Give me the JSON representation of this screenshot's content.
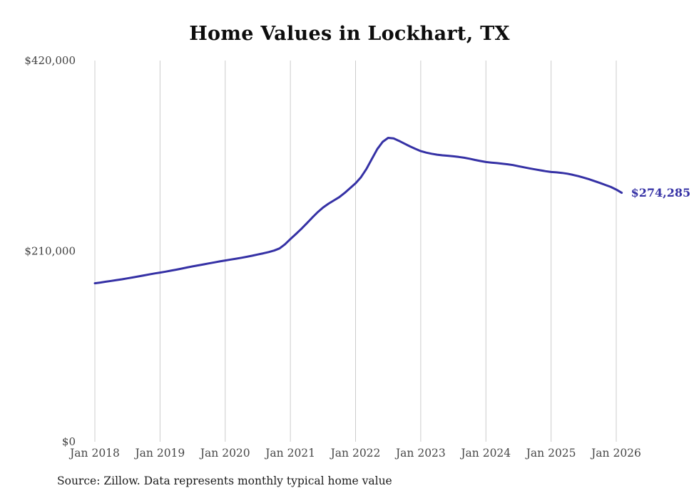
{
  "title": "Home Values in Lockhart, TX",
  "source": "Source: Zillow. Data represents monthly typical home value",
  "colors": {
    "line": "#3531a5",
    "grid": "#cccccc",
    "title_text": "#0d0d0d",
    "tick_text": "#474747",
    "source_text": "#1b1b1b",
    "end_label": "#3531a5",
    "background": "#ffffff"
  },
  "chart_data": {
    "type": "line",
    "title": "Home Values in Lockhart, TX",
    "series_name": "Typical home value (USD)",
    "x_start": "2018-01",
    "x_interval": "monthly",
    "x_tick_labels": [
      "Jan 2018",
      "Jan 2019",
      "Jan 2020",
      "Jan 2021",
      "Jan 2022",
      "Jan 2023",
      "Jan 2024",
      "Jan 2025",
      "Jan 2026"
    ],
    "y_tick_labels": [
      "$0",
      "$210,000",
      "$420,000"
    ],
    "y_tick_values": [
      0,
      210000,
      420000
    ],
    "ylim": [
      0,
      420000
    ],
    "grid": "vertical-only",
    "legend": "none",
    "end_label": "$274,285",
    "final_value": 274285,
    "peak_value": 334800,
    "values": [
      174600,
      175400,
      176300,
      177200,
      178100,
      179000,
      180000,
      181000,
      182100,
      183200,
      184300,
      185400,
      186400,
      187400,
      188500,
      189600,
      190800,
      192000,
      193200,
      194300,
      195400,
      196500,
      197600,
      198700,
      199700,
      200700,
      201700,
      202700,
      203800,
      205000,
      206300,
      207600,
      209000,
      210600,
      213000,
      217500,
      223300,
      228800,
      234500,
      240500,
      246800,
      252800,
      258000,
      262200,
      265800,
      269500,
      274200,
      279500,
      284700,
      291500,
      300500,
      311500,
      322500,
      330500,
      334800,
      334200,
      331500,
      328500,
      325500,
      322700,
      320200,
      318600,
      317300,
      316300,
      315600,
      315100,
      314500,
      313800,
      312900,
      311800,
      310500,
      309300,
      308200,
      307600,
      307000,
      306400,
      305700,
      304800,
      303600,
      302400,
      301200,
      300100,
      299100,
      298100,
      297200,
      296800,
      296200,
      295300,
      294100,
      292700,
      291000,
      289200,
      287200,
      285100,
      282900,
      280700,
      277800,
      274285
    ]
  }
}
